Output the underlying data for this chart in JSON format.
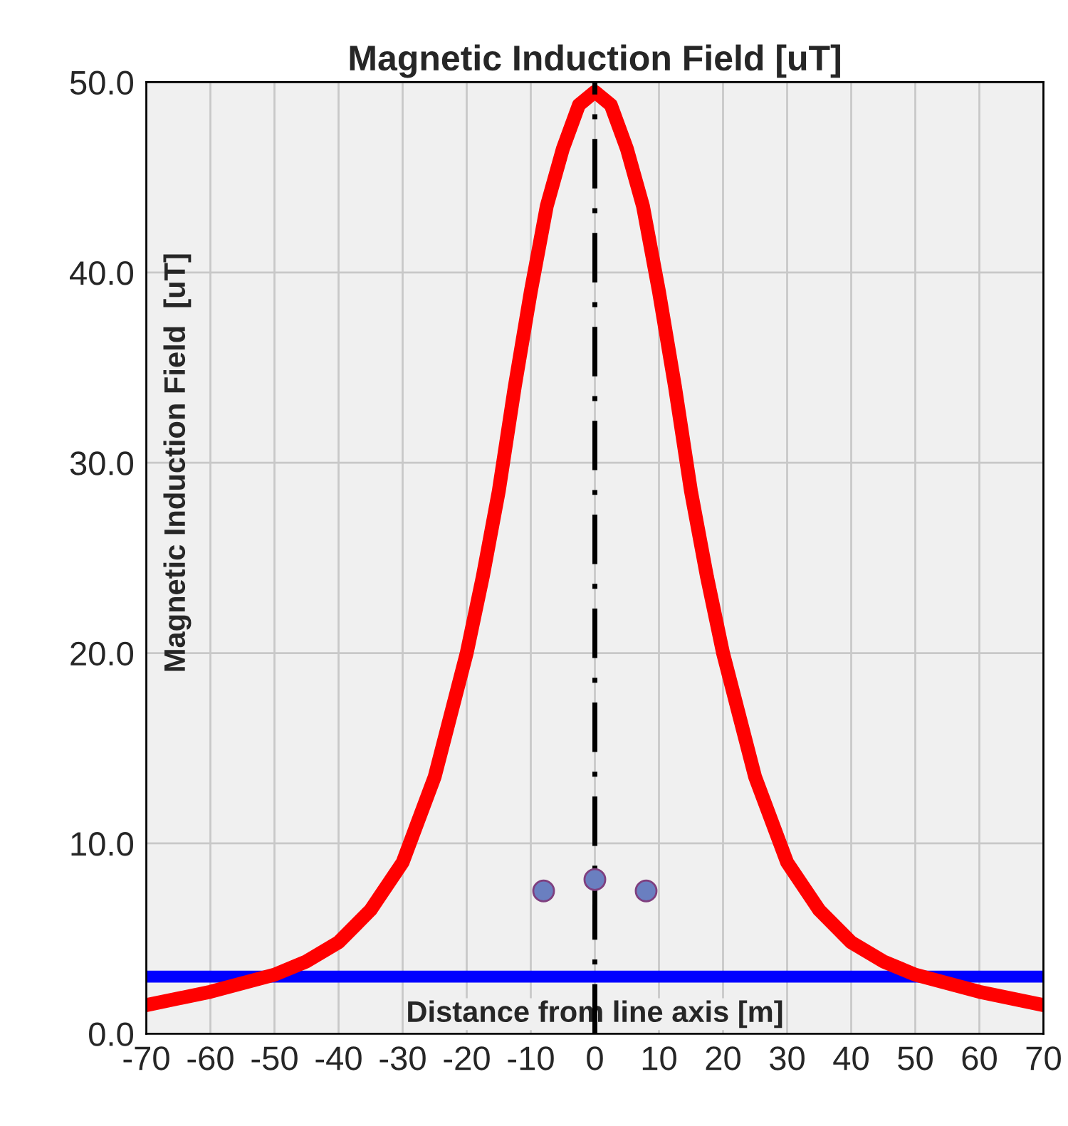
{
  "chart_data": {
    "type": "line",
    "title": "Magnetic Induction Field [uT]",
    "xlabel": "Distance from line axis [m]",
    "ylabel": "Magnetic Induction Field  [uT]",
    "series": [
      {
        "color": "#ff0000",
        "x": [
          -70,
          -60,
          -50,
          -45,
          -40,
          -35,
          -30,
          -25,
          -20,
          -17.5,
          -15,
          -12.5,
          -10,
          -7.5,
          -5,
          -2.5,
          0,
          2.5,
          5,
          7.5,
          10,
          12.5,
          15,
          17.5,
          20,
          25,
          30,
          35,
          40,
          45,
          50,
          60,
          70
        ],
        "values": [
          1.5,
          2.2,
          3.1,
          3.8,
          4.8,
          6.5,
          9,
          13.5,
          20,
          24,
          28.5,
          34,
          39,
          43.5,
          46.5,
          48.8,
          49.5,
          48.8,
          46.5,
          43.5,
          39,
          34,
          28.5,
          24,
          20,
          13.5,
          9,
          6.5,
          4.8,
          3.8,
          3.1,
          2.2,
          1.5
        ]
      },
      {
        "type": "scatter",
        "color": "#6a7fc0",
        "x": [
          -8,
          0,
          8
        ],
        "values": [
          7.5,
          8.1,
          7.5
        ]
      }
    ],
    "ref_lines": [
      {
        "axis": "y",
        "value": 3.0,
        "color": "#0000ff",
        "line_style": "solid"
      },
      {
        "axis": "x",
        "value": 0,
        "color": "#000000",
        "line_style": "dashed"
      }
    ],
    "xlim": [
      -70,
      70
    ],
    "xticks": [
      -70,
      -60,
      -50,
      -40,
      -30,
      -20,
      -10,
      0,
      10,
      20,
      30,
      40,
      50,
      60,
      70
    ],
    "ylim": [
      0,
      50
    ],
    "yticks": [
      {
        "value": 0,
        "label": "0.0"
      },
      {
        "value": 10,
        "label": "10.0"
      },
      {
        "value": 20,
        "label": "20.0"
      },
      {
        "value": 30,
        "label": "30.0"
      },
      {
        "value": 40,
        "label": "40.0"
      },
      {
        "value": 50,
        "label": "50.0"
      }
    ],
    "grid": true,
    "line_style": "solid"
  }
}
